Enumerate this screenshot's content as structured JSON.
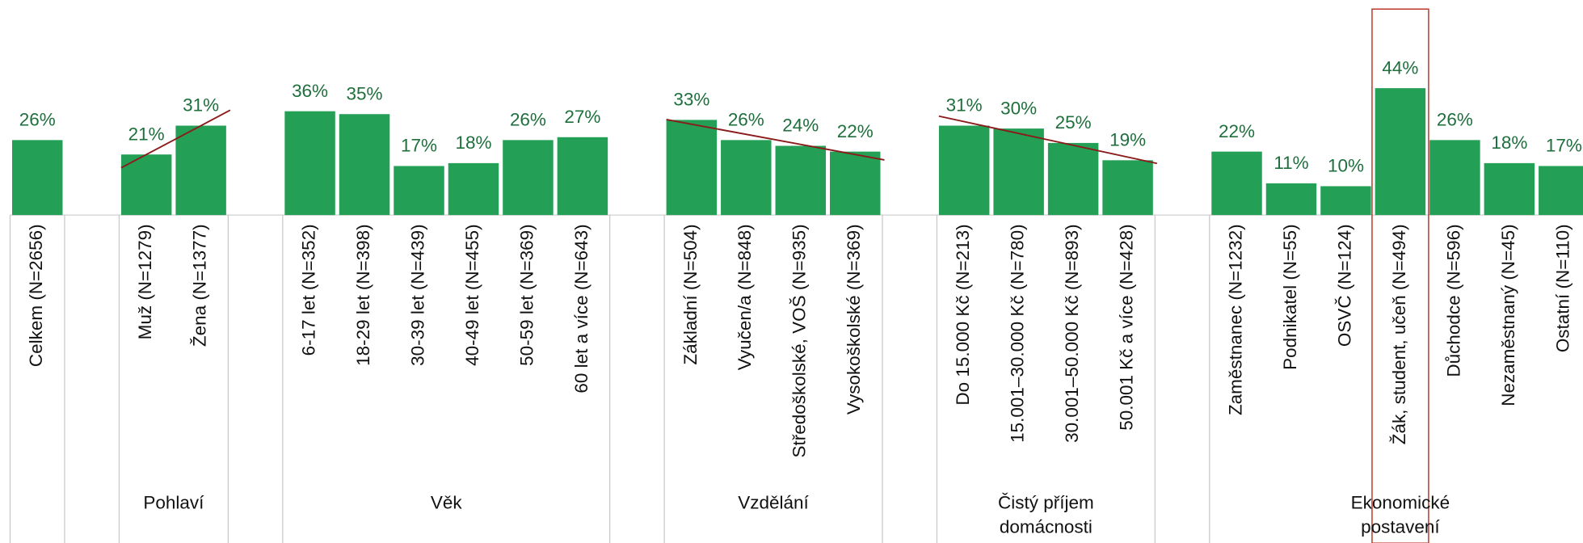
{
  "chart_data": {
    "type": "bar",
    "color": "#23a055",
    "label_color": "#1f6f3d",
    "trendline_color": "#8b1a1a",
    "highlight_color": "#c0392b",
    "groups": [
      {
        "categories": [
          "Celkem (N=2656)"
        ],
        "values": [
          26
        ],
        "value_labels": [
          "26%"
        ]
      },
      {
        "name": "Pohlaví",
        "categories": [
          "Muž (N=1279)",
          "Žena (N=1377)"
        ],
        "values": [
          21,
          31
        ],
        "value_labels": [
          "21%",
          "31%"
        ],
        "trendline": true
      },
      {
        "name": "Věk",
        "categories": [
          "6-17 let (N=352)",
          "18-29 let (N=398)",
          "30-39 let (N=439)",
          "40-49 let (N=455)",
          "50-59 let (N=369)",
          "60 let a více (N=643)"
        ],
        "values": [
          36,
          35,
          17,
          18,
          26,
          27
        ],
        "value_labels": [
          "36%",
          "35%",
          "17%",
          "18%",
          "26%",
          "27%"
        ]
      },
      {
        "name": "Vzdělání",
        "categories": [
          "Základní (N=504)",
          "Vyučen/a (N=848)",
          "Středoškolské, VOŠ (N=935)",
          "Vysokoškolské (N=369)"
        ],
        "values": [
          33,
          26,
          24,
          22
        ],
        "value_labels": [
          "33%",
          "26%",
          "24%",
          "22%"
        ],
        "trendline": true
      },
      {
        "name": "Čistý příjem domácnosti",
        "categories": [
          "Do 15.000 Kč (N=213)",
          "15.001–30.000 Kč (N=780)",
          "30.001–50.000 Kč (N=893)",
          "50.001 Kč a více (N=428)"
        ],
        "values": [
          31,
          30,
          25,
          19
        ],
        "value_labels": [
          "31%",
          "30%",
          "25%",
          "19%"
        ],
        "trendline": true
      },
      {
        "name": "Ekonomické postavení",
        "categories": [
          "Zaměstnanec (N=1232)",
          "Podnikatel (N=55)",
          "OSVČ (N=124)",
          "Žák, student, učeň (N=494)",
          "Důchodce (N=596)",
          "Nezaměstnaný (N=45)",
          "Ostatní (N=110)"
        ],
        "values": [
          22,
          11,
          10,
          44,
          26,
          18,
          17
        ],
        "value_labels": [
          "22%",
          "11%",
          "10%",
          "44%",
          "26%",
          "18%",
          "17%"
        ],
        "highlight_index": 3
      }
    ]
  }
}
